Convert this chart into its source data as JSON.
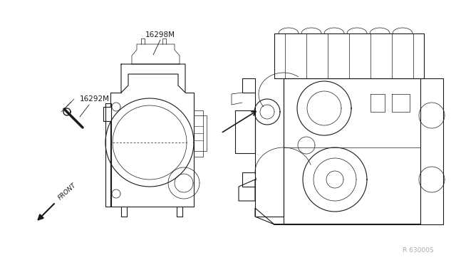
{
  "bg_color": "#ffffff",
  "line_color": "#1a1a1a",
  "label_color": "#1a1a1a",
  "gray_color": "#999999",
  "part_labels": [
    "16298M",
    "16292M"
  ],
  "front_text": "FRONT",
  "diagram_ref": "R 63000S",
  "lw_main": 0.8,
  "lw_thin": 0.5,
  "label_fontsize": 7.5,
  "ref_fontsize": 6.5
}
